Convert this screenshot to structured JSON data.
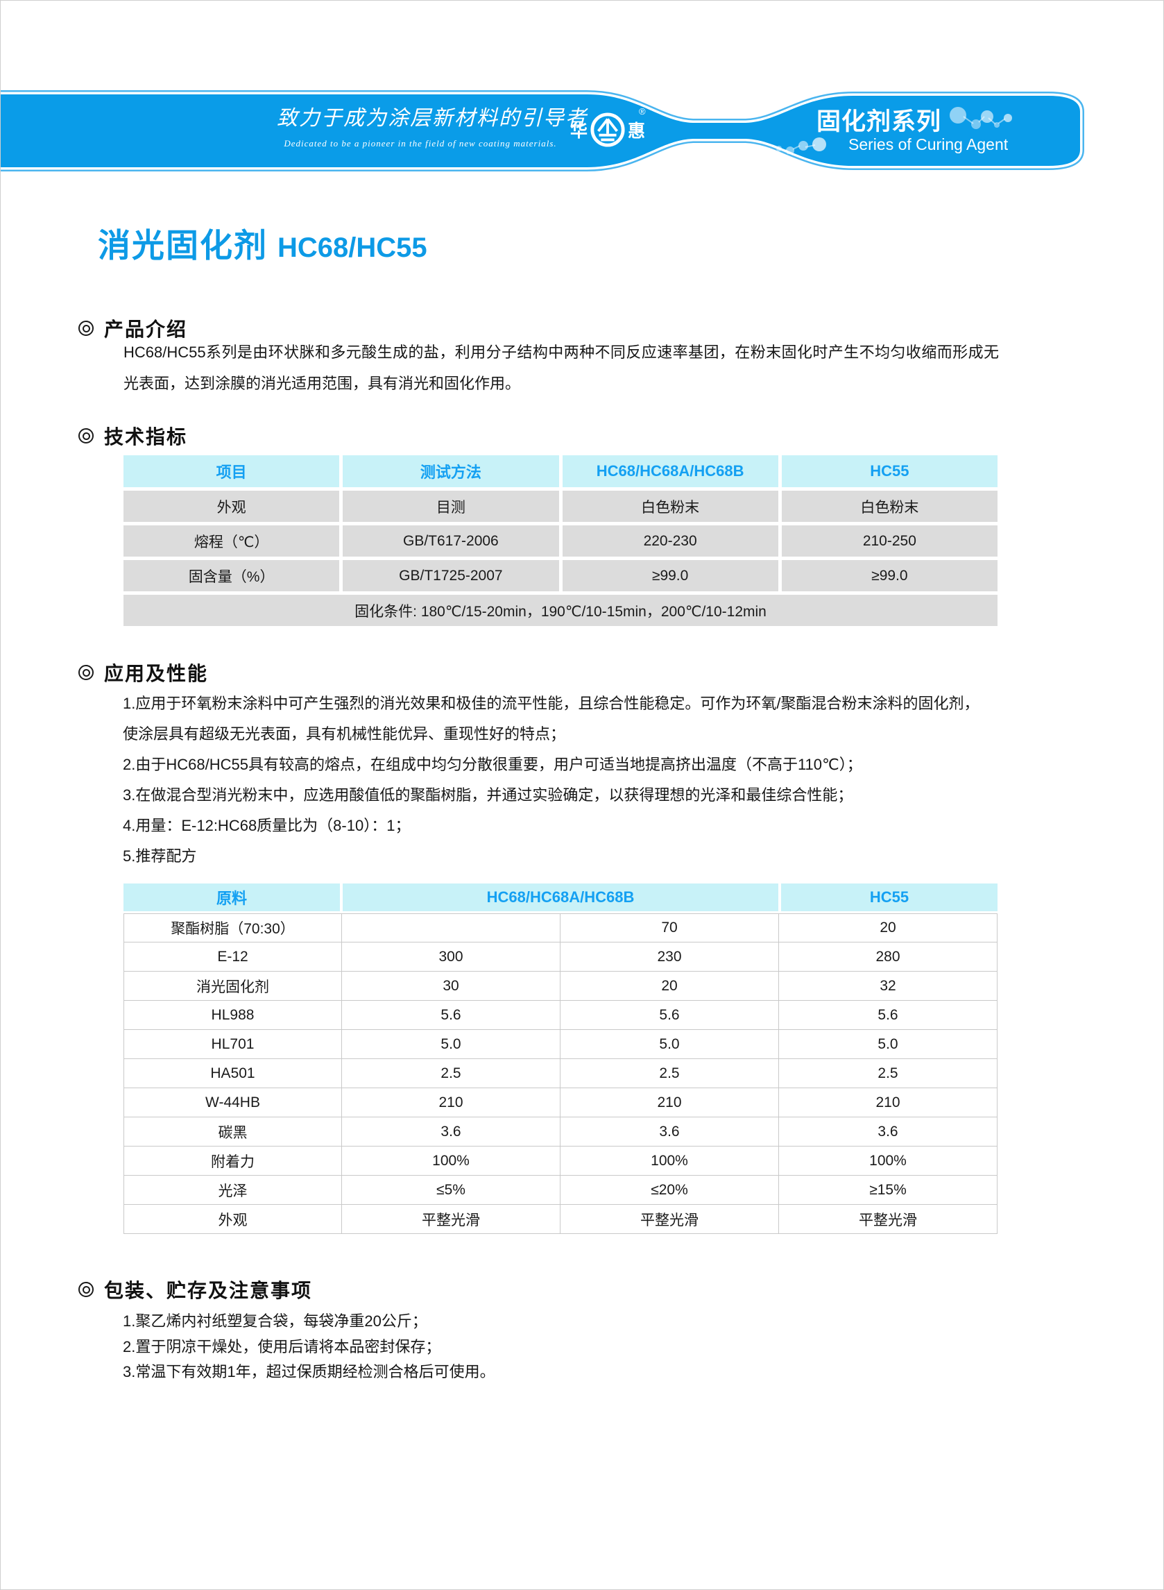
{
  "colors": {
    "banner_blue": "#0a9ce8",
    "banner_outline_blue": "#4ab5ef",
    "title_blue": "#0d9ae6",
    "table_header_bg": "#c8f2f8",
    "table_header_text": "#14a0f2",
    "table_cell_gray": "#dcdcdc"
  },
  "header": {
    "slogan_cn": "致力于成为涂层新材料的引导者",
    "slogan_en": "Dedicated to be a pioneer in the field of new coating materials.",
    "logo_left": "华",
    "logo_right": "惠",
    "trademark": "®",
    "series_cn": "固化剂系列",
    "series_en": "Series of Curing Agent"
  },
  "title": {
    "cn": "消光固化剂",
    "model": "HC68/HC55"
  },
  "sections": {
    "intro": {
      "heading": "产品介绍",
      "body": "HC68/HC55系列是由环状脒和多元酸生成的盐，利用分子结构中两种不同反应速率基团，在粉末固化时产生不均匀收缩而形成无光表面，达到涂膜的消光适用范围，具有消光和固化作用。"
    },
    "specs": {
      "heading": "技术指标"
    },
    "application": {
      "heading": "应用及性能",
      "items": [
        "1.应用于环氧粉末涂料中可产生强烈的消光效果和极佳的流平性能，且综合性能稳定。可作为环氧/聚酯混合粉末涂料的固化剂，使涂层具有超级无光表面，具有机械性能优异、重现性好的特点；",
        "2.由于HC68/HC55具有较高的熔点，在组成中均匀分散很重要，用户可适当地提高挤出温度（不高于110℃）；",
        "3.在做混合型消光粉末中，应选用酸值低的聚酯树脂，并通过实验确定，以获得理想的光泽和最佳综合性能；",
        "4.用量：E-12:HC68质量比为（8-10）：1；",
        "5.推荐配方"
      ]
    },
    "packaging": {
      "heading": "包装、贮存及注意事项",
      "items": [
        "1.聚乙烯内衬纸塑复合袋，每袋净重20公斤；",
        "2.置于阴凉干燥处，使用后请将本品密封保存；",
        "3.常温下有效期1年，超过保质期经检测合格后可使用。"
      ]
    }
  },
  "spec_table": {
    "headers": [
      "项目",
      "测试方法",
      "HC68/HC68A/HC68B",
      "HC55"
    ],
    "rows": [
      [
        "外观",
        "目测",
        "白色粉末",
        "白色粉末"
      ],
      [
        "熔程（℃）",
        "GB/T617-2006",
        "220-230",
        "210-250"
      ],
      [
        "固含量（%）",
        "GB/T1725-2007",
        "≥99.0",
        "≥99.0"
      ]
    ],
    "footer": "固化条件: 180℃/15-20min，190℃/10-15min，200℃/10-12min"
  },
  "formula_table": {
    "headers": [
      "原料",
      "HC68/HC68A/HC68B",
      "HC55"
    ],
    "rows": [
      [
        "聚酯树脂（70:30）",
        "",
        "70",
        "20"
      ],
      [
        "E-12",
        "300",
        "230",
        "280"
      ],
      [
        "消光固化剂",
        "30",
        "20",
        "32"
      ],
      [
        "HL988",
        "5.6",
        "5.6",
        "5.6"
      ],
      [
        "HL701",
        "5.0",
        "5.0",
        "5.0"
      ],
      [
        "HA501",
        "2.5",
        "2.5",
        "2.5"
      ],
      [
        "W-44HB",
        "210",
        "210",
        "210"
      ],
      [
        "碳黑",
        "3.6",
        "3.6",
        "3.6"
      ],
      [
        "附着力",
        "100%",
        "100%",
        "100%"
      ],
      [
        "光泽",
        "≤5%",
        "≤20%",
        "≥15%"
      ],
      [
        "外观",
        "平整光滑",
        "平整光滑",
        "平整光滑"
      ]
    ]
  }
}
